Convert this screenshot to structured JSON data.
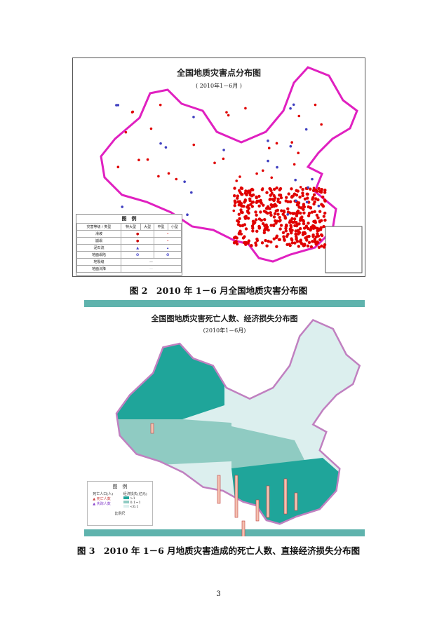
{
  "figure2": {
    "map_title": "全国地质灾害点分布图",
    "map_subtitle": "( 2010年1－6月 )",
    "legend": {
      "title": "图　例",
      "header_type": "灾害等级 / 类型",
      "levels": [
        "特大型",
        "大型",
        "中型",
        "小型"
      ],
      "rows": [
        "滑坡",
        "崩塌",
        "泥石流",
        "地面塌陷",
        "地裂缝",
        "地面沉降"
      ]
    },
    "caption": "图 2　2010 年 1－6 月全国地质灾害分布图",
    "colors": {
      "border": "#e020c0",
      "point": "#e00000",
      "debris": "#4040c0"
    }
  },
  "figure3": {
    "map_title": "全国图地质灾害死亡人数、经济损失分布图",
    "map_subtitle": "(2010年1－6月)",
    "legend": {
      "title": "图　例",
      "col1": "死亡人口(人)",
      "col2": "经济损失(亿元)",
      "items1": [
        "死亡人数",
        "失踪人数"
      ],
      "items2": [
        ">1",
        "0.1~1",
        "<0.1"
      ],
      "scale": "比例尺"
    },
    "caption": "图 3　2010 年 1－6 月地质灾害造成的死亡人数、直接经济损失分布图",
    "colors": {
      "high": "#1fa59a",
      "mid": "#8fcbc2",
      "low": "#dcefee",
      "border": "#c080c0"
    }
  },
  "page_number": "3"
}
